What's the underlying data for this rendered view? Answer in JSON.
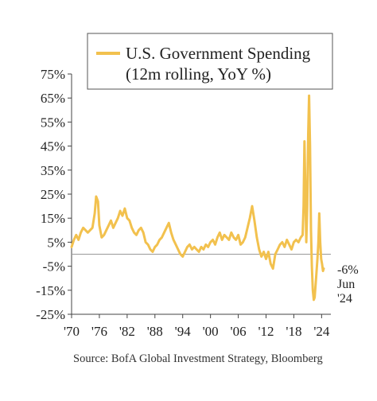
{
  "chart_data": {
    "type": "line",
    "series": [
      {
        "name": "U.S. Government Spending (12m rolling, YoY %)",
        "color": "#F2C14E",
        "points": [
          [
            1970.0,
            3
          ],
          [
            1970.5,
            6
          ],
          [
            1971.0,
            8
          ],
          [
            1971.5,
            6
          ],
          [
            1972.0,
            9
          ],
          [
            1972.5,
            11
          ],
          [
            1973.0,
            10
          ],
          [
            1973.5,
            9
          ],
          [
            1974.0,
            10
          ],
          [
            1974.5,
            11
          ],
          [
            1975.0,
            17
          ],
          [
            1975.3,
            24
          ],
          [
            1975.7,
            22
          ],
          [
            1976.0,
            12
          ],
          [
            1976.5,
            7
          ],
          [
            1977.0,
            8
          ],
          [
            1977.5,
            10
          ],
          [
            1978.0,
            12
          ],
          [
            1978.5,
            14
          ],
          [
            1979.0,
            11
          ],
          [
            1979.5,
            13
          ],
          [
            1980.0,
            15
          ],
          [
            1980.5,
            18
          ],
          [
            1981.0,
            16
          ],
          [
            1981.5,
            19
          ],
          [
            1982.0,
            15
          ],
          [
            1982.5,
            14
          ],
          [
            1983.0,
            11
          ],
          [
            1983.5,
            9
          ],
          [
            1984.0,
            8
          ],
          [
            1984.5,
            10
          ],
          [
            1985.0,
            11
          ],
          [
            1985.5,
            9
          ],
          [
            1986.0,
            5
          ],
          [
            1986.5,
            4
          ],
          [
            1987.0,
            2
          ],
          [
            1987.5,
            1
          ],
          [
            1988.0,
            3
          ],
          [
            1988.5,
            4
          ],
          [
            1989.0,
            6
          ],
          [
            1989.5,
            7
          ],
          [
            1990.0,
            9
          ],
          [
            1990.5,
            11
          ],
          [
            1991.0,
            13
          ],
          [
            1991.5,
            9
          ],
          [
            1992.0,
            6
          ],
          [
            1992.5,
            4
          ],
          [
            1993.0,
            2
          ],
          [
            1993.5,
            0
          ],
          [
            1994.0,
            -1
          ],
          [
            1994.5,
            1
          ],
          [
            1995.0,
            3
          ],
          [
            1995.5,
            4
          ],
          [
            1996.0,
            2
          ],
          [
            1996.5,
            3
          ],
          [
            1997.0,
            2
          ],
          [
            1997.5,
            1
          ],
          [
            1998.0,
            3
          ],
          [
            1998.5,
            2
          ],
          [
            1999.0,
            4
          ],
          [
            1999.5,
            3
          ],
          [
            2000.0,
            5
          ],
          [
            2000.5,
            6
          ],
          [
            2001.0,
            4
          ],
          [
            2001.5,
            7
          ],
          [
            2002.0,
            9
          ],
          [
            2002.5,
            6
          ],
          [
            2003.0,
            8
          ],
          [
            2003.5,
            7
          ],
          [
            2004.0,
            6
          ],
          [
            2004.5,
            9
          ],
          [
            2005.0,
            7
          ],
          [
            2005.5,
            6
          ],
          [
            2006.0,
            8
          ],
          [
            2006.5,
            4
          ],
          [
            2007.0,
            5
          ],
          [
            2007.5,
            7
          ],
          [
            2008.0,
            11
          ],
          [
            2008.5,
            15
          ],
          [
            2009.0,
            20
          ],
          [
            2009.5,
            14
          ],
          [
            2010.0,
            7
          ],
          [
            2010.5,
            2
          ],
          [
            2011.0,
            -1
          ],
          [
            2011.5,
            1
          ],
          [
            2012.0,
            -2
          ],
          [
            2012.5,
            1
          ],
          [
            2013.0,
            -4
          ],
          [
            2013.5,
            -6
          ],
          [
            2014.0,
            0
          ],
          [
            2014.5,
            2
          ],
          [
            2015.0,
            4
          ],
          [
            2015.5,
            5
          ],
          [
            2016.0,
            3
          ],
          [
            2016.5,
            6
          ],
          [
            2017.0,
            4
          ],
          [
            2017.5,
            2
          ],
          [
            2018.0,
            5
          ],
          [
            2018.5,
            6
          ],
          [
            2019.0,
            5
          ],
          [
            2019.5,
            7
          ],
          [
            2019.9,
            8
          ],
          [
            2020.1,
            20
          ],
          [
            2020.3,
            47
          ],
          [
            2020.5,
            25
          ],
          [
            2020.7,
            5
          ],
          [
            2020.9,
            20
          ],
          [
            2021.1,
            50
          ],
          [
            2021.3,
            66
          ],
          [
            2021.5,
            45
          ],
          [
            2021.7,
            10
          ],
          [
            2021.9,
            -5
          ],
          [
            2022.1,
            -15
          ],
          [
            2022.3,
            -19
          ],
          [
            2022.5,
            -18
          ],
          [
            2022.8,
            -10
          ],
          [
            2023.1,
            -2
          ],
          [
            2023.3,
            5
          ],
          [
            2023.5,
            17
          ],
          [
            2023.7,
            5
          ],
          [
            2023.9,
            -2
          ],
          [
            2024.1,
            -4
          ],
          [
            2024.3,
            -7
          ],
          [
            2024.45,
            -6
          ]
        ]
      }
    ],
    "legend": {
      "line1": "U.S. Government Spending",
      "line2": "(12m rolling, YoY %)",
      "position": "top-right"
    },
    "ylim": [
      -25,
      75
    ],
    "y_ticks": [
      75,
      65,
      55,
      45,
      35,
      25,
      15,
      5,
      -5,
      -15,
      -25
    ],
    "y_tick_labels": [
      "75%",
      "65%",
      "55%",
      "45%",
      "35%",
      "25%",
      "15%",
      "5%",
      "-5%",
      "-15%",
      "-25%"
    ],
    "xlim": [
      1970,
      2026
    ],
    "x_ticks": [
      1970,
      1976,
      1982,
      1988,
      1994,
      2000,
      2006,
      2012,
      2018,
      2024
    ],
    "x_tick_labels": [
      "'70",
      "'76",
      "'82",
      "'88",
      "'94",
      "'00",
      "'06",
      "'12",
      "'18",
      "'24"
    ],
    "reference_line_y": 0,
    "annotation": {
      "value": "-6%",
      "line2": "Jun",
      "line3": "'24"
    },
    "grid": false
  },
  "source_text": "Source: BofA Global Investment Strategy, Bloomberg"
}
